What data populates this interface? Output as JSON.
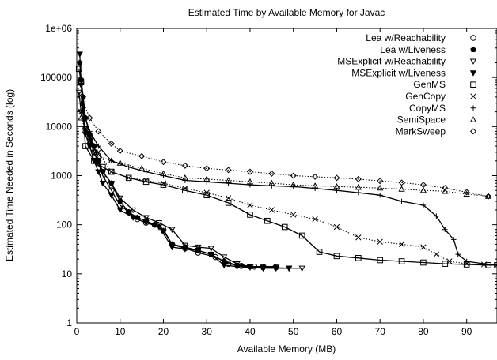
{
  "chart_data": {
    "type": "line",
    "title": "Estimated Time by Available Memory for Javac",
    "xlabel": "Available Memory (MB)",
    "ylabel": "Estimated Time Needed in Seconds (log)",
    "xlim": [
      0,
      97
    ],
    "ylim": [
      1,
      1000000
    ],
    "yscale": "log",
    "xticks": [
      0,
      10,
      20,
      30,
      40,
      50,
      60,
      70,
      80,
      90
    ],
    "xtick_labels": [
      "0",
      "10",
      "20",
      "30",
      "40",
      "50",
      "60",
      "70",
      "80",
      "90"
    ],
    "yticks": [
      1,
      10,
      100,
      1000,
      10000,
      100000,
      1000000
    ],
    "ytick_labels": [
      "1",
      "10",
      "100",
      "1000",
      "10000",
      "100000",
      "1e+06"
    ],
    "legend_position": "top-right",
    "series": [
      {
        "name": "Lea w/Reachability",
        "marker": "circle",
        "dash": "solid",
        "x": [
          1,
          2,
          3,
          4,
          5,
          6,
          8,
          10,
          12,
          14,
          16,
          18,
          20,
          22,
          25,
          28,
          32,
          35,
          38,
          41,
          43,
          46
        ],
        "y": [
          80000,
          9000,
          6000,
          3000,
          1800,
          1000,
          500,
          250,
          180,
          130,
          110,
          100,
          80,
          40,
          33,
          27,
          22,
          16,
          14.5,
          14,
          14,
          14
        ]
      },
      {
        "name": "Lea w/Liveness",
        "marker": "pentagon",
        "dash": "solid",
        "x": [
          0.7,
          1,
          1.5,
          2,
          3,
          4,
          5,
          6,
          8,
          10,
          12,
          14,
          16,
          18,
          20,
          22,
          25,
          28,
          31,
          34,
          37,
          40,
          43,
          46
        ],
        "y": [
          200000,
          90000,
          40000,
          15000,
          7000,
          4000,
          2000,
          1200,
          700,
          300,
          180,
          140,
          120,
          100,
          75,
          40,
          35,
          30,
          25,
          18,
          15,
          14,
          13.5,
          13.5
        ]
      },
      {
        "name": "MSExplicit w/Reachability",
        "marker": "triangle-down-open",
        "dash": "solid",
        "x": [
          0.5,
          1,
          2,
          3,
          4,
          5,
          6,
          8,
          10,
          13,
          16,
          19,
          22,
          25,
          28,
          31,
          34,
          37,
          40,
          43,
          46,
          49,
          52
        ],
        "y": [
          50000,
          20000,
          9000,
          5000,
          3000,
          1800,
          1200,
          700,
          350,
          200,
          140,
          110,
          80,
          38,
          35,
          33,
          22,
          16,
          14,
          13.5,
          13.2,
          13,
          13
        ]
      },
      {
        "name": "MSExplicit w/Liveness",
        "marker": "triangle-down-filled",
        "dash": "solid",
        "x": [
          0.7,
          1,
          2,
          3,
          4,
          5,
          6,
          8,
          10,
          13,
          16,
          19,
          22,
          25,
          28,
          31,
          34,
          37,
          40,
          43,
          46,
          49
        ],
        "y": [
          300000,
          70000,
          7000,
          4000,
          2000,
          1200,
          700,
          400,
          200,
          140,
          110,
          90,
          35,
          32,
          30,
          25,
          15,
          14,
          13.5,
          13,
          13,
          13
        ]
      },
      {
        "name": "GenMS",
        "marker": "square",
        "dash": "solid",
        "x": [
          0.5,
          1,
          2,
          4,
          6,
          8,
          12,
          16,
          20,
          25,
          30,
          35,
          40,
          44,
          48,
          52,
          56,
          60,
          65,
          70,
          75,
          80,
          85,
          90,
          95,
          97
        ],
        "y": [
          150000,
          80000,
          4000,
          2000,
          1500,
          1200,
          900,
          750,
          650,
          500,
          400,
          280,
          160,
          120,
          90,
          60,
          28,
          23,
          21,
          19,
          18,
          17,
          16,
          15.5,
          15,
          15
        ]
      },
      {
        "name": "GenCopy",
        "marker": "x",
        "dash": "dot",
        "x": [
          1,
          2,
          3,
          5,
          8,
          12,
          16,
          20,
          25,
          30,
          35,
          40,
          45,
          50,
          55,
          60,
          65,
          70,
          75,
          80,
          83,
          86,
          90,
          94,
          97
        ],
        "y": [
          20000,
          9000,
          6000,
          3000,
          1200,
          900,
          800,
          700,
          550,
          450,
          350,
          250,
          200,
          160,
          130,
          90,
          55,
          45,
          40,
          35,
          25,
          18,
          16,
          15.5,
          15
        ]
      },
      {
        "name": "CopyMS",
        "marker": "plus",
        "dash": "solid",
        "x": [
          1,
          2,
          3,
          5,
          8,
          12,
          16,
          20,
          25,
          30,
          35,
          40,
          45,
          50,
          55,
          60,
          65,
          70,
          75,
          80,
          83,
          85,
          87,
          88,
          90,
          94,
          97
        ],
        "y": [
          30000,
          15000,
          8000,
          4000,
          2000,
          1500,
          1200,
          1000,
          800,
          750,
          700,
          650,
          620,
          600,
          550,
          500,
          450,
          400,
          300,
          250,
          150,
          80,
          50,
          25,
          18,
          16,
          15
        ]
      },
      {
        "name": "SemiSpace",
        "marker": "triangle-up",
        "dash": "dot",
        "x": [
          1,
          3,
          5,
          8,
          10,
          15,
          20,
          25,
          30,
          35,
          40,
          45,
          50,
          55,
          60,
          65,
          70,
          75,
          80,
          85,
          90,
          95
        ],
        "y": [
          15000,
          5000,
          2500,
          2000,
          1800,
          1400,
          1100,
          900,
          850,
          800,
          750,
          700,
          650,
          620,
          600,
          580,
          560,
          530,
          500,
          480,
          420,
          380
        ]
      },
      {
        "name": "MarkSweep",
        "marker": "diamond",
        "dash": "dot",
        "x": [
          1,
          3,
          5,
          8,
          10,
          15,
          20,
          25,
          30,
          35,
          40,
          45,
          50,
          55,
          60,
          65,
          70,
          75,
          80,
          85,
          90,
          95
        ],
        "y": [
          40000,
          15000,
          8000,
          4500,
          3200,
          2500,
          1900,
          1600,
          1400,
          1300,
          1200,
          1100,
          1000,
          950,
          900,
          850,
          780,
          720,
          650,
          560,
          460,
          380
        ]
      }
    ]
  }
}
